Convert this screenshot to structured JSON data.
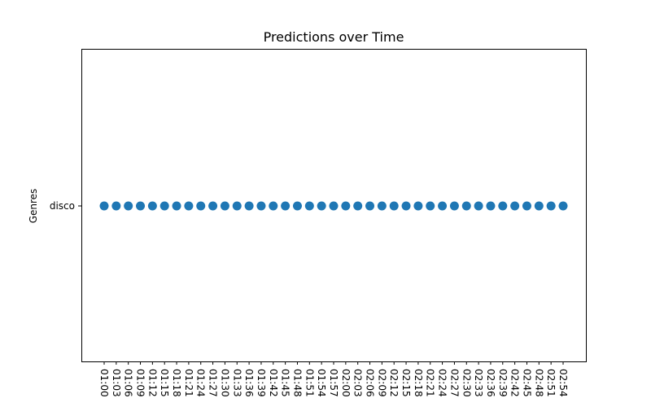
{
  "chart_data": {
    "type": "scatter",
    "title": "Predictions over Time",
    "xlabel": "",
    "ylabel": "Genres",
    "y_categories": [
      "disco"
    ],
    "x": [
      "01:00",
      "01:03",
      "01:06",
      "01:09",
      "01:12",
      "01:15",
      "01:18",
      "01:21",
      "01:24",
      "01:27",
      "01:30",
      "01:33",
      "01:36",
      "01:39",
      "01:42",
      "01:45",
      "01:48",
      "01:51",
      "01:54",
      "01:57",
      "02:00",
      "02:03",
      "02:06",
      "02:09",
      "02:12",
      "02:15",
      "02:18",
      "02:21",
      "02:24",
      "02:27",
      "02:30",
      "02:33",
      "02:36",
      "02:39",
      "02:42",
      "02:45",
      "02:48",
      "02:51",
      "02:54"
    ],
    "y": [
      "disco",
      "disco",
      "disco",
      "disco",
      "disco",
      "disco",
      "disco",
      "disco",
      "disco",
      "disco",
      "disco",
      "disco",
      "disco",
      "disco",
      "disco",
      "disco",
      "disco",
      "disco",
      "disco",
      "disco",
      "disco",
      "disco",
      "disco",
      "disco",
      "disco",
      "disco",
      "disco",
      "disco",
      "disco",
      "disco",
      "disco",
      "disco",
      "disco",
      "disco",
      "disco",
      "disco",
      "disco",
      "disco",
      "disco"
    ],
    "grid": false,
    "colors": {
      "marker": "#1f77b4",
      "axes": "#000000",
      "background": "#ffffff"
    }
  }
}
